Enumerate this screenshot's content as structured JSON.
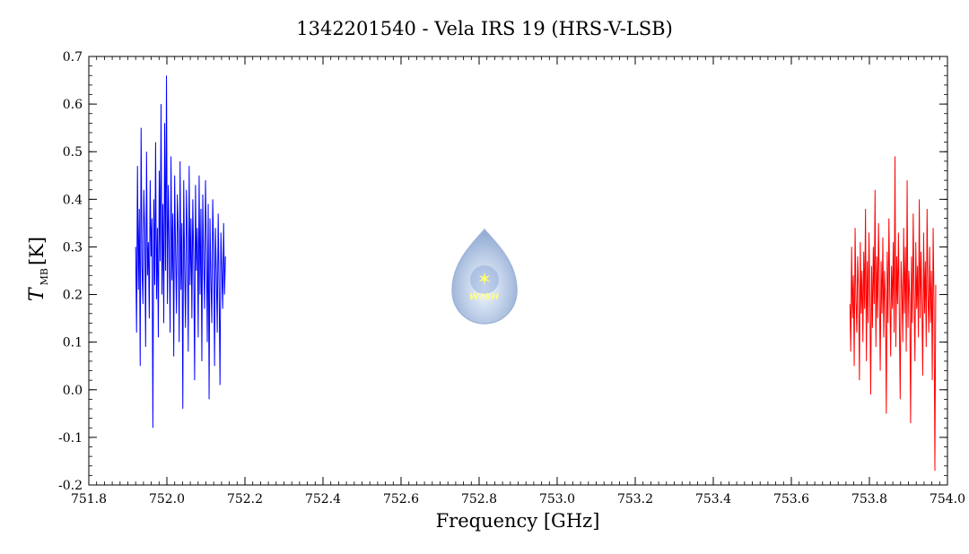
{
  "chart_data": {
    "type": "line",
    "title": "1342201540 - Vela IRS 19 (HRS-V-LSB)",
    "xlabel": "Frequency [GHz]",
    "ylabel": {
      "main": "T",
      "sub": "MB",
      "unit": "[K]"
    },
    "xlim": [
      751.8,
      754.0
    ],
    "ylim": [
      -0.2,
      0.7
    ],
    "xticks": [
      "751.8",
      "752.0",
      "752.2",
      "752.4",
      "752.6",
      "752.8",
      "753.0",
      "753.2",
      "753.4",
      "753.6",
      "753.8",
      "754.0"
    ],
    "yticks": [
      "-0.2",
      "-0.1",
      "0.0",
      "0.1",
      "0.2",
      "0.3",
      "0.4",
      "0.5",
      "0.6",
      "0.7"
    ],
    "grid": false,
    "series": [
      {
        "color": "#0000ff",
        "x_range": [
          751.92,
          752.15
        ],
        "values": [
          0.3,
          0.12,
          0.47,
          0.21,
          0.38,
          0.05,
          0.55,
          0.26,
          0.18,
          0.42,
          0.33,
          0.09,
          0.5,
          0.24,
          0.31,
          0.15,
          0.44,
          0.28,
          0.36,
          -0.08,
          0.4,
          0.22,
          0.52,
          0.19,
          0.34,
          0.11,
          0.46,
          0.27,
          0.6,
          0.2,
          0.39,
          0.14,
          0.56,
          0.25,
          0.66,
          0.18,
          0.43,
          0.3,
          0.12,
          0.49,
          0.23,
          0.37,
          0.07,
          0.45,
          0.29,
          0.16,
          0.41,
          0.33,
          0.1,
          0.48,
          0.21,
          0.35,
          -0.04,
          0.44,
          0.26,
          0.13,
          0.42,
          0.32,
          0.08,
          0.47,
          0.22,
          0.36,
          0.15,
          0.4,
          0.28,
          0.02,
          0.43,
          0.25,
          0.34,
          0.11,
          0.45,
          0.2,
          0.38,
          0.06,
          0.41,
          0.27,
          0.17,
          0.44,
          0.3,
          0.1,
          0.39,
          -0.02,
          0.36,
          0.23,
          0.14,
          0.4,
          0.29,
          0.05,
          0.34,
          0.24,
          0.12,
          0.37,
          0.22,
          0.01,
          0.33,
          0.25,
          0.17,
          0.35,
          0.2,
          0.28
        ]
      },
      {
        "color": "#ff0000",
        "x_range": [
          753.75,
          753.97
        ],
        "values": [
          0.18,
          0.08,
          0.3,
          0.15,
          0.24,
          0.05,
          0.34,
          0.19,
          0.12,
          0.28,
          0.21,
          0.02,
          0.31,
          0.16,
          0.25,
          0.1,
          0.29,
          0.17,
          0.38,
          0.06,
          0.27,
          0.14,
          0.33,
          0.2,
          -0.01,
          0.26,
          0.13,
          0.3,
          0.18,
          0.42,
          0.09,
          0.28,
          0.15,
          0.35,
          0.21,
          0.04,
          0.27,
          0.16,
          0.32,
          0.11,
          0.25,
          0.19,
          -0.05,
          0.29,
          0.14,
          0.36,
          0.2,
          0.07,
          0.26,
          0.17,
          0.31,
          0.12,
          0.49,
          0.09,
          0.28,
          0.18,
          0.33,
          0.15,
          -0.02,
          0.27,
          0.21,
          0.1,
          0.34,
          0.16,
          0.3,
          0.08,
          0.44,
          0.13,
          0.25,
          0.19,
          -0.07,
          0.28,
          0.14,
          0.37,
          0.2,
          0.06,
          0.31,
          0.17,
          0.26,
          0.11,
          0.4,
          0.15,
          0.29,
          0.18,
          0.03,
          0.33,
          0.16,
          0.27,
          0.09,
          0.38,
          0.2,
          0.12,
          0.3,
          0.14,
          0.25,
          0.02,
          0.34,
          0.18,
          -0.17,
          0.22
        ]
      }
    ]
  },
  "logo": {
    "text": "WISH"
  }
}
